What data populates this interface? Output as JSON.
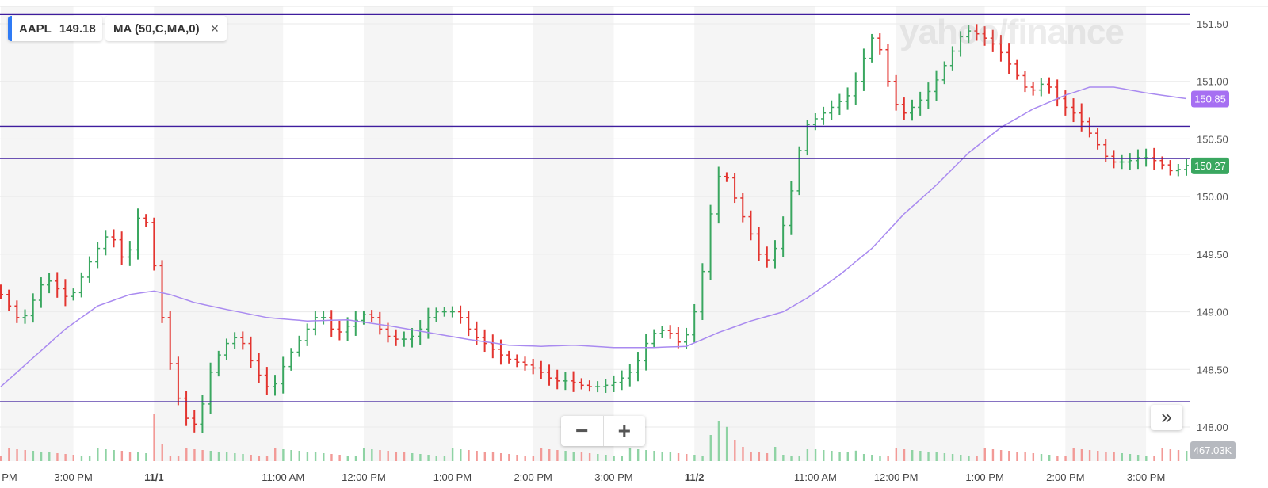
{
  "legend": {
    "symbol": "AAPL",
    "price": "149.18",
    "indicator": "MA (50,C,MA,0)",
    "close_glyph": "×",
    "accent_color": "#2f7bf5"
  },
  "watermark": "yahoo/finance",
  "zoom": {
    "minus": "−",
    "plus": "+"
  },
  "expand": {
    "glyph": "»"
  },
  "chart_data": {
    "type": "bar",
    "subtype": "ohlc",
    "ylim": [
      147.9,
      151.6
    ],
    "y_ticks": [
      "151.50",
      "151.00",
      "150.50",
      "150.00",
      "149.50",
      "149.00",
      "148.50",
      "148.00"
    ],
    "y_tick_values": [
      151.5,
      151.0,
      150.5,
      150.0,
      149.5,
      149.0,
      148.5,
      148.0
    ],
    "x_ticks": [
      "PM",
      "3:00 PM",
      "11/1",
      "11:00 AM",
      "12:00 PM",
      "1:00 PM",
      "2:00 PM",
      "3:00 PM",
      "11/2",
      "11:00 AM",
      "12:00 PM",
      "1:00 PM",
      "2:00 PM",
      "3:00 PM"
    ],
    "x_tick_bars": [
      0,
      9,
      19,
      35,
      45,
      56,
      66,
      76,
      86,
      101,
      111,
      122,
      132,
      142
    ],
    "num_bars": 148,
    "horizontal_levels": [
      151.58,
      150.61,
      150.33,
      148.22
    ],
    "badges": [
      {
        "label": "150.85",
        "value": 150.85,
        "color": "#a66ff2"
      },
      {
        "label": "150.27",
        "value": 150.27,
        "color": "#3aa760"
      }
    ],
    "volume_badge": "467.03K",
    "colors": {
      "up": "#3aa760",
      "down": "#e3342f",
      "ma": "#a98af0",
      "level": "#3f1d9e"
    },
    "price_path": [
      [
        0,
        149.2
      ],
      [
        3,
        148.9
      ],
      [
        6,
        149.3
      ],
      [
        9,
        149.1
      ],
      [
        12,
        149.5
      ],
      [
        14,
        149.7
      ],
      [
        16,
        149.4
      ],
      [
        18,
        149.95
      ],
      [
        19,
        149.6
      ],
      [
        20,
        149.2
      ],
      [
        21,
        148.7
      ],
      [
        22,
        148.4
      ],
      [
        23,
        148.1
      ],
      [
        25,
        148.0
      ],
      [
        26,
        148.4
      ],
      [
        28,
        148.7
      ],
      [
        30,
        148.8
      ],
      [
        32,
        148.5
      ],
      [
        34,
        148.3
      ],
      [
        36,
        148.6
      ],
      [
        38,
        148.8
      ],
      [
        40,
        149.0
      ],
      [
        42,
        148.8
      ],
      [
        44,
        148.9
      ],
      [
        46,
        149.0
      ],
      [
        48,
        148.8
      ],
      [
        50,
        148.75
      ],
      [
        52,
        148.8
      ],
      [
        54,
        149.0
      ],
      [
        57,
        149.0
      ],
      [
        59,
        148.8
      ],
      [
        61,
        148.7
      ],
      [
        63,
        148.6
      ],
      [
        65,
        148.55
      ],
      [
        67,
        148.5
      ],
      [
        69,
        148.4
      ],
      [
        71,
        148.4
      ],
      [
        73,
        148.35
      ],
      [
        75,
        148.35
      ],
      [
        77,
        148.4
      ],
      [
        79,
        148.5
      ],
      [
        81,
        148.8
      ],
      [
        83,
        148.85
      ],
      [
        85,
        148.7
      ],
      [
        87,
        149.1
      ],
      [
        88,
        149.6
      ],
      [
        89,
        150.1
      ],
      [
        90,
        150.25
      ],
      [
        92,
        149.9
      ],
      [
        94,
        149.6
      ],
      [
        95,
        149.4
      ],
      [
        97,
        149.6
      ],
      [
        99,
        150.2
      ],
      [
        100,
        150.6
      ],
      [
        102,
        150.7
      ],
      [
        104,
        150.8
      ],
      [
        106,
        150.9
      ],
      [
        107,
        151.1
      ],
      [
        108,
        151.3
      ],
      [
        109,
        151.45
      ],
      [
        110,
        151.1
      ],
      [
        111,
        150.9
      ],
      [
        112,
        150.7
      ],
      [
        114,
        150.8
      ],
      [
        116,
        150.95
      ],
      [
        118,
        151.2
      ],
      [
        120,
        151.45
      ],
      [
        122,
        151.4
      ],
      [
        124,
        151.3
      ],
      [
        126,
        151.1
      ],
      [
        128,
        150.9
      ],
      [
        130,
        151.0
      ],
      [
        132,
        150.8
      ],
      [
        134,
        150.7
      ],
      [
        136,
        150.5
      ],
      [
        138,
        150.3
      ],
      [
        140,
        150.3
      ],
      [
        142,
        150.35
      ],
      [
        144,
        150.3
      ],
      [
        146,
        150.2
      ],
      [
        147,
        150.27
      ]
    ],
    "ma_path": [
      [
        0,
        148.35
      ],
      [
        4,
        148.6
      ],
      [
        8,
        148.85
      ],
      [
        12,
        149.05
      ],
      [
        16,
        149.15
      ],
      [
        19,
        149.18
      ],
      [
        21,
        149.15
      ],
      [
        24,
        149.08
      ],
      [
        28,
        149.02
      ],
      [
        33,
        148.95
      ],
      [
        38,
        148.92
      ],
      [
        43,
        148.93
      ],
      [
        48,
        148.88
      ],
      [
        53,
        148.82
      ],
      [
        58,
        148.76
      ],
      [
        63,
        148.71
      ],
      [
        67,
        148.7
      ],
      [
        71,
        148.71
      ],
      [
        76,
        148.69
      ],
      [
        81,
        148.69
      ],
      [
        85,
        148.7
      ],
      [
        89,
        148.82
      ],
      [
        93,
        148.92
      ],
      [
        97,
        149.0
      ],
      [
        100,
        149.12
      ],
      [
        104,
        149.32
      ],
      [
        108,
        149.55
      ],
      [
        112,
        149.85
      ],
      [
        116,
        150.1
      ],
      [
        120,
        150.38
      ],
      [
        124,
        150.6
      ],
      [
        128,
        150.76
      ],
      [
        132,
        150.88
      ],
      [
        135,
        150.95
      ],
      [
        138,
        150.95
      ],
      [
        142,
        150.9
      ],
      [
        147,
        150.85
      ]
    ],
    "volume_spikes": [
      [
        19,
        1.0
      ],
      [
        20,
        0.35
      ],
      [
        23,
        0.28
      ],
      [
        88,
        0.55
      ],
      [
        89,
        0.85
      ],
      [
        90,
        0.72
      ],
      [
        91,
        0.45
      ],
      [
        92,
        0.3
      ],
      [
        96,
        0.3
      ],
      [
        100,
        0.25
      ],
      [
        106,
        0.22
      ]
    ]
  }
}
